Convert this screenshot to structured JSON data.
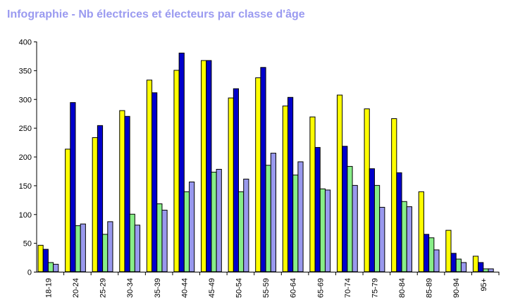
{
  "chart_data": {
    "type": "bar",
    "title": "Infographie - Nb électrices et électeurs par classe d'âge",
    "xlabel": "",
    "ylabel": "",
    "ylim": [
      0,
      400
    ],
    "yticks": [
      0,
      50,
      100,
      150,
      200,
      250,
      300,
      350,
      400
    ],
    "grid": false,
    "categories": [
      "18-19",
      "20-24",
      "25-29",
      "30-34",
      "35-39",
      "40-44",
      "45-49",
      "50-54",
      "55-59",
      "60-64",
      "65-69",
      "70-74",
      "75-79",
      "80-84",
      "85-89",
      "90-94",
      "95+"
    ],
    "series": [
      {
        "color": "#ffff00",
        "values": [
          46,
          213,
          233,
          280,
          333,
          350,
          367,
          302,
          337,
          288,
          269,
          307,
          283,
          266,
          139,
          72,
          27
        ]
      },
      {
        "color": "#0000cc",
        "values": [
          39,
          294,
          254,
          270,
          311,
          380,
          367,
          318,
          355,
          303,
          216,
          218,
          179,
          172,
          65,
          32,
          16
        ]
      },
      {
        "color": "#88ee88",
        "values": [
          16,
          80,
          65,
          100,
          118,
          139,
          173,
          139,
          185,
          168,
          144,
          183,
          150,
          122,
          59,
          22,
          5
        ]
      },
      {
        "color": "#9999ee",
        "values": [
          13,
          83,
          87,
          81,
          107,
          156,
          178,
          161,
          206,
          191,
          142,
          150,
          112,
          113,
          38,
          16,
          5
        ]
      }
    ]
  }
}
